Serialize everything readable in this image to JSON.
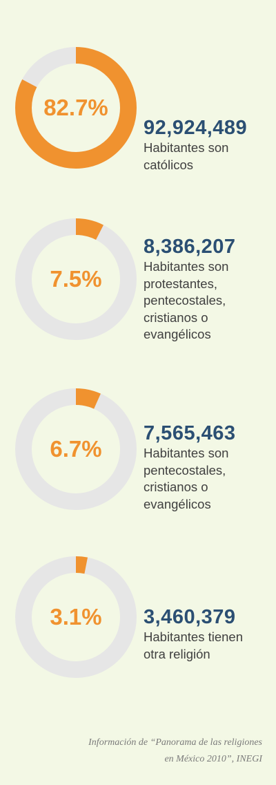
{
  "colors": {
    "accent": "#f0922f",
    "track": "#e6e6e6",
    "number": "#2b4f73",
    "background": "#f3f8e5"
  },
  "chart_data": {
    "type": "donut",
    "items": [
      {
        "percent_label": "82.7%",
        "value": 82.7,
        "count": "92,924,489",
        "description": "Habitantes son\ncatólicos"
      },
      {
        "percent_label": "7.5%",
        "value": 7.5,
        "count": "8,386,207",
        "description": "Habitantes son\nprotestantes,\npentecostales,\ncristianos o\nevangélicos"
      },
      {
        "percent_label": "6.7%",
        "value": 6.7,
        "count": "7,565,463",
        "description": "Habitantes son\npentecostales,\ncristianos o\nevangélicos"
      },
      {
        "percent_label": "3.1%",
        "value": 3.1,
        "count": "3,460,379",
        "description": "Habitantes tienen\notra religión"
      }
    ]
  },
  "source": "Información de “Panorama de las religiones\nen México 2010”, INEGI"
}
